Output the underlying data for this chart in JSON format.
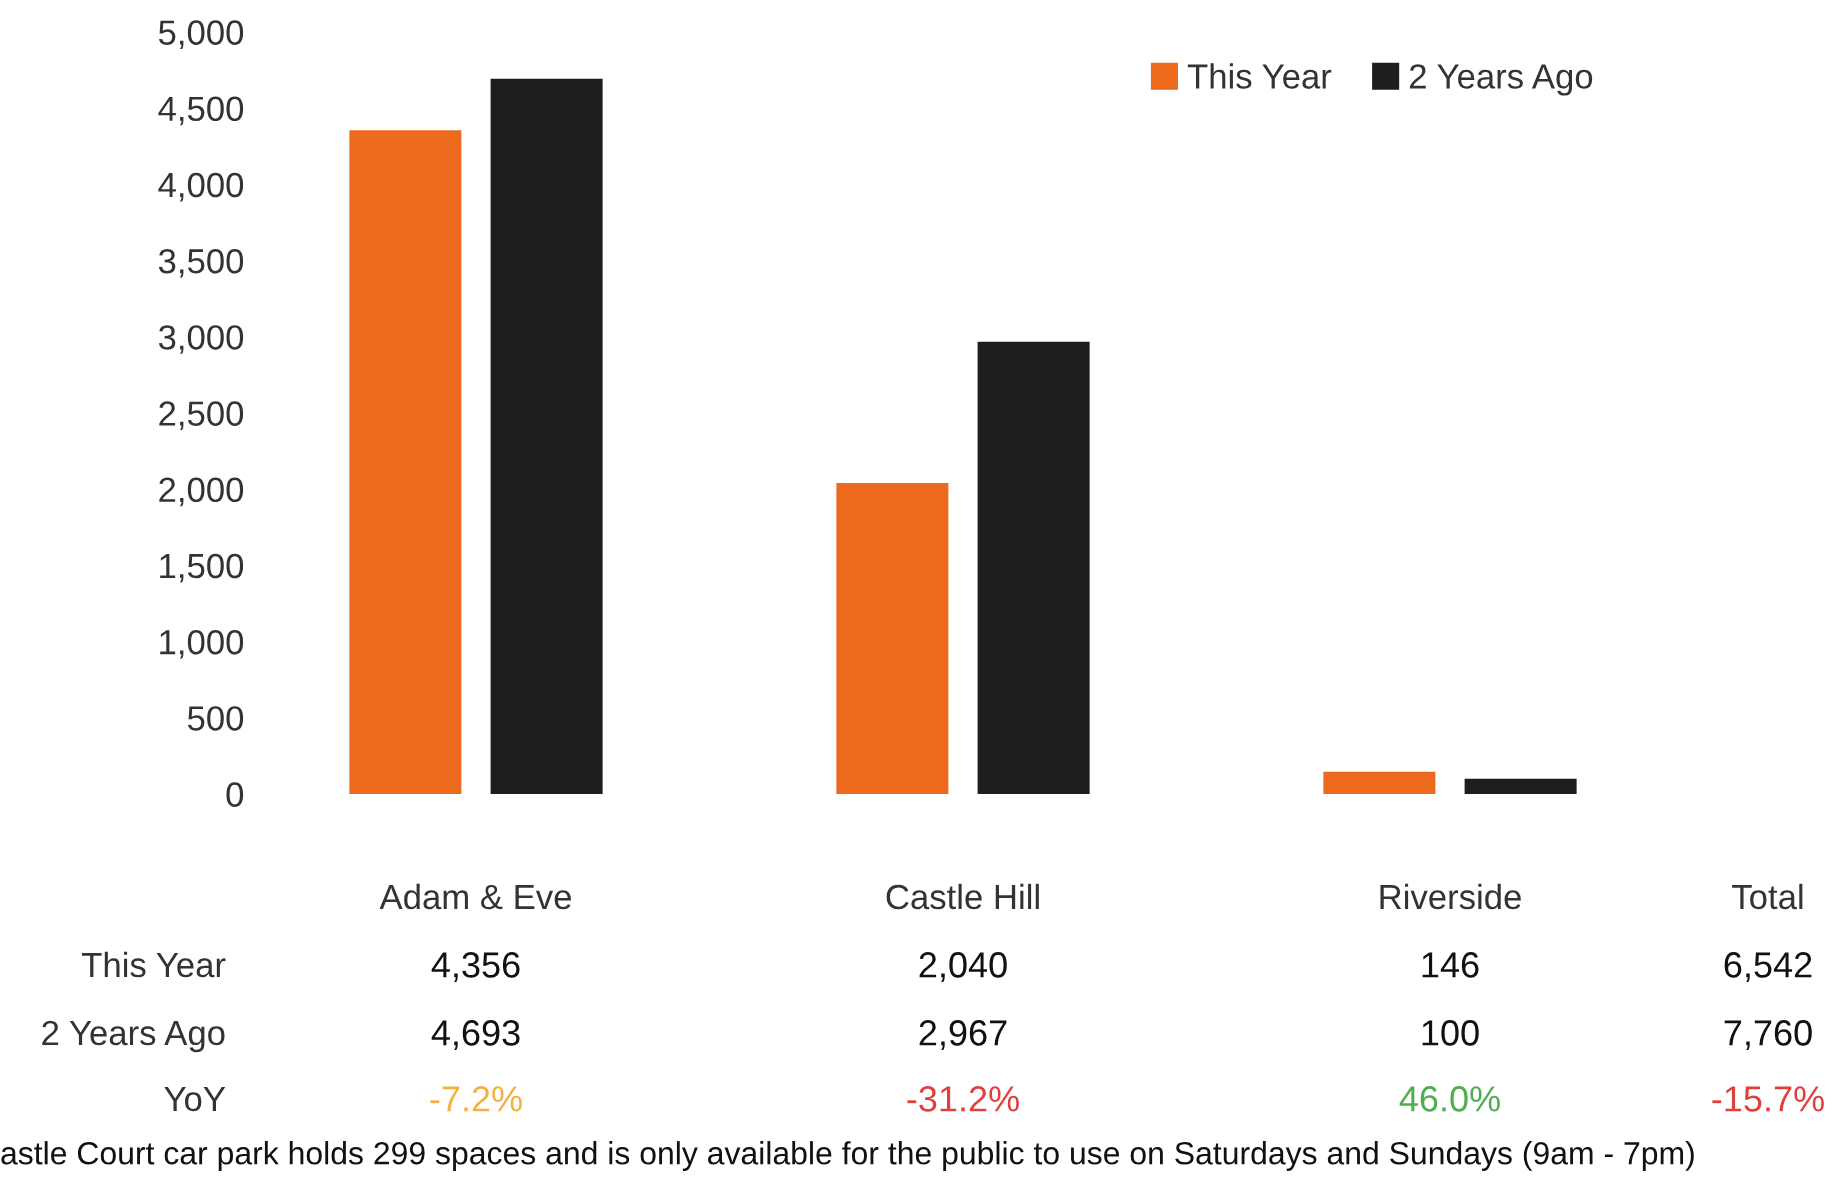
{
  "chart_data": {
    "type": "bar",
    "categories": [
      "Adam & Eve",
      "Castle Hill",
      "Riverside"
    ],
    "series": [
      {
        "name": "This Year",
        "color": "#eb6a1e",
        "values": [
          4356,
          2040,
          146
        ],
        "value_labels": [
          "4,356",
          "2,040",
          "146"
        ]
      },
      {
        "name": "2 Years Ago",
        "color": "#1e1e1e",
        "values": [
          4693,
          2967,
          100
        ],
        "value_labels": [
          "4,693",
          "2,967",
          "100"
        ]
      }
    ],
    "ylim": [
      0,
      5000
    ],
    "yticks": [
      {
        "value": 0,
        "label": "0"
      },
      {
        "value": 500,
        "label": "500"
      },
      {
        "value": 1000,
        "label": "1,000"
      },
      {
        "value": 1500,
        "label": "1,500"
      },
      {
        "value": 2000,
        "label": "2,000"
      },
      {
        "value": 2500,
        "label": "2,500"
      },
      {
        "value": 3000,
        "label": "3,000"
      },
      {
        "value": 3500,
        "label": "3,500"
      },
      {
        "value": 4000,
        "label": "4,000"
      },
      {
        "value": 4500,
        "label": "4,500"
      },
      {
        "value": 5000,
        "label": "5,000"
      }
    ],
    "grid": false,
    "legend": "top right",
    "annotations": [
      "Total",
      "6,542",
      "7,760",
      "YoY",
      "-7.2%",
      "-31.2%",
      "46.0%",
      "-15.7%",
      "astle Court car park holds 299 spaces and is only available for the public to use on Saturdays and Sundays (9am - 7pm)"
    ]
  }
}
